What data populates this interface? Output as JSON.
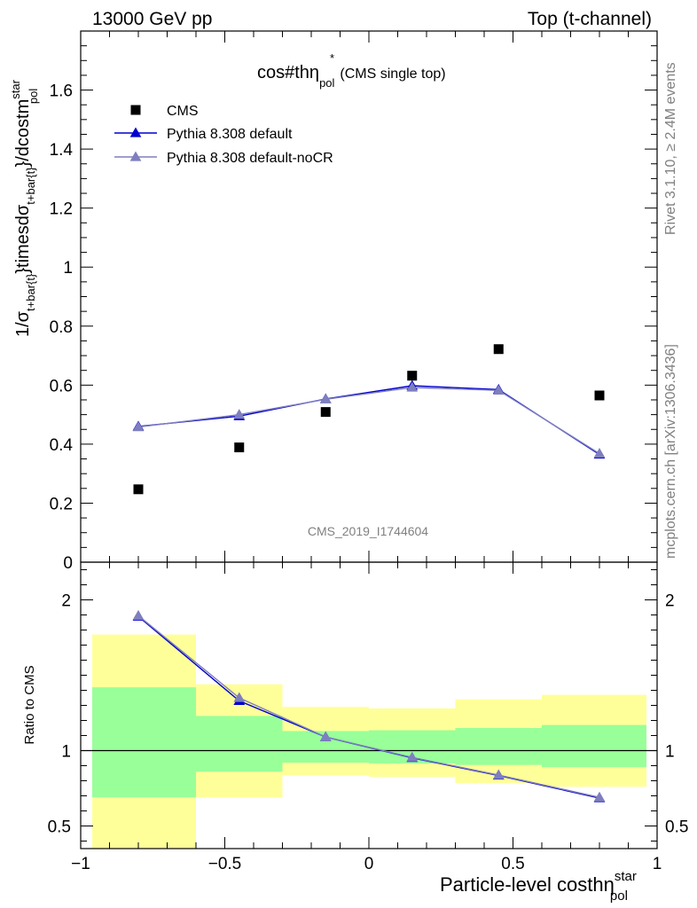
{
  "header": {
    "left": "13000 GeV pp",
    "right": "Top (t-channel)"
  },
  "side_labels": {
    "rivet": "Rivet 3.1.10, ≥ 2.4M events",
    "mcplots": "mcplots.cern.ch [arXiv:1306.3436]"
  },
  "chart_data": [
    {
      "type": "scatter",
      "title_main": "cos#thη",
      "title_sup": "*",
      "title_sub": "pol",
      "title_suffix": "(CMS single top)",
      "ylabel": {
        "p1": "1/σ",
        "s1": "t+bar{t}",
        "p2": "}timesdσ",
        "s2": "t+bar{t}",
        "p3": "}/dcostm",
        "sup": "star",
        "sub": "pol"
      },
      "watermark": "CMS_2019_I1744604",
      "xlim": [
        -1.0,
        1.0
      ],
      "ylim": [
        0,
        1.8
      ],
      "yticks": [
        0,
        0.2,
        0.4,
        0.6,
        0.8,
        1,
        1.2,
        1.4,
        1.6
      ],
      "ytick_labels": [
        "0",
        "0.2",
        "0.4",
        "0.6",
        "0.8",
        "1",
        "1.2",
        "1.4",
        "1.6"
      ],
      "legend_position": "top-left",
      "series": [
        {
          "name": "CMS",
          "marker": "square",
          "color": "#000000",
          "x": [
            -0.8,
            -0.45,
            -0.15,
            0.15,
            0.45,
            0.8
          ],
          "y": [
            0.247,
            0.389,
            0.509,
            0.632,
            0.722,
            0.565
          ]
        },
        {
          "name": "Pythia 8.308 default",
          "marker": "triangle",
          "color": "#0000cc",
          "x": [
            -0.8,
            -0.45,
            -0.15,
            0.15,
            0.45,
            0.8
          ],
          "y": [
            0.46,
            0.495,
            0.553,
            0.598,
            0.585,
            0.365
          ]
        },
        {
          "name": "Pythia 8.308 default-noCR",
          "marker": "triangle",
          "color": "#7f7fbf",
          "x": [
            -0.8,
            -0.45,
            -0.15,
            0.15,
            0.45,
            0.8
          ],
          "y": [
            0.458,
            0.5,
            0.552,
            0.592,
            0.582,
            0.368
          ]
        }
      ]
    },
    {
      "type": "line",
      "ylabel": "Ratio to CMS",
      "xlabel_main": "Particle-level costhη",
      "xlabel_sup": "star",
      "xlabel_sub": "pol",
      "xlim": [
        -1.0,
        1.0
      ],
      "ylim": [
        0.35,
        2.25
      ],
      "xticks": [
        -1,
        -0.5,
        0,
        0.5,
        1
      ],
      "xtick_labels": [
        "−1",
        "−0.5",
        "0",
        "0.5",
        "1"
      ],
      "yticks": [
        0.5,
        1,
        2
      ],
      "ytick_labels": [
        "0.5",
        "1",
        "2"
      ],
      "bands": {
        "bin_edges": [
          -1.0,
          -0.6,
          -0.3,
          0.0,
          0.3,
          0.6,
          1.0
        ],
        "inner_low": [
          0.69,
          0.86,
          0.92,
          0.915,
          0.905,
          0.89
        ],
        "inner_high": [
          1.42,
          1.23,
          1.13,
          1.135,
          1.15,
          1.17
        ],
        "outer_low": [
          0.35,
          0.69,
          0.835,
          0.825,
          0.785,
          0.76
        ],
        "outer_high": [
          1.77,
          1.44,
          1.29,
          1.28,
          1.34,
          1.37
        ],
        "inner_color": "#99ff99",
        "outer_color": "#ffff99"
      },
      "reference_line": 1,
      "series": [
        {
          "name": "Pythia 8.308 default",
          "color": "#0000cc",
          "x": [
            -0.8,
            -0.45,
            -0.15,
            0.15,
            0.45,
            0.8
          ],
          "y": [
            1.89,
            1.33,
            1.09,
            0.952,
            0.835,
            0.685
          ]
        },
        {
          "name": "Pythia 8.308 default-noCR",
          "color": "#7f7fbf",
          "x": [
            -0.8,
            -0.45,
            -0.15,
            0.15,
            0.45,
            0.8
          ],
          "y": [
            1.895,
            1.35,
            1.09,
            0.955,
            0.838,
            0.69
          ]
        }
      ]
    }
  ]
}
